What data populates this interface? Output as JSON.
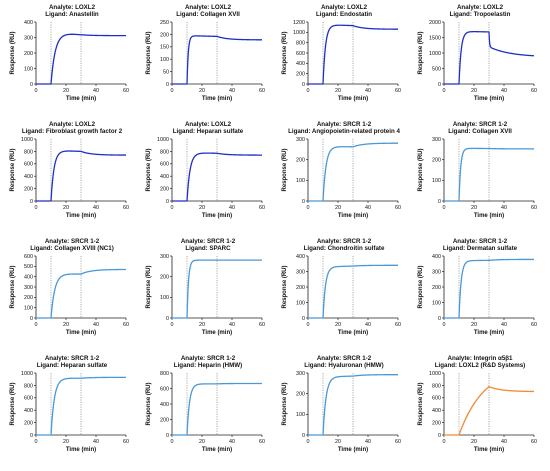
{
  "colors": {
    "dark_blue": "#1f2ec9",
    "light_blue": "#4a98d6",
    "orange": "#f28a2e",
    "axis": "#222222",
    "dotted": "#777777"
  },
  "chart_data": [
    {
      "type": "line",
      "title": "Analyte: LOXL2",
      "subtitle": "Ligand: Anastellin",
      "xlabel": "Time (min)",
      "ylabel": "Response (RU)",
      "xlim": [
        0,
        60
      ],
      "xticks": [
        0,
        20,
        40,
        60
      ],
      "ylim": [
        0,
        400
      ],
      "yticks": [
        0,
        100,
        200,
        300,
        400
      ],
      "color": "dark_blue",
      "injection_start": 10,
      "injection_end": 30,
      "curve": {
        "kind": "assoc",
        "ymax": 335,
        "k": 0.35,
        "y_end": 318,
        "y_final": 312
      }
    },
    {
      "type": "line",
      "title": "Analyte: LOXL2",
      "subtitle": "Ligand: Collagen XVII",
      "xlabel": "Time (min)",
      "ylabel": "Response (RU)",
      "xlim": [
        0,
        60
      ],
      "xticks": [
        0,
        20,
        40,
        60
      ],
      "ylim": [
        0,
        250
      ],
      "yticks": [
        0,
        50,
        100,
        150,
        200,
        250
      ],
      "color": "dark_blue",
      "injection_start": 10,
      "injection_end": 30,
      "curve": {
        "kind": "assoc",
        "ymax": 195,
        "k": 1.2,
        "y_end": 192,
        "y_final": 178
      }
    },
    {
      "type": "line",
      "title": "Analyte: LOXL2",
      "subtitle": "Ligand: Endostatin",
      "xlabel": "Time (min)",
      "ylabel": "Response (RU)",
      "xlim": [
        0,
        60
      ],
      "xticks": [
        0,
        20,
        40,
        60
      ],
      "ylim": [
        0,
        1200
      ],
      "yticks": [
        0,
        200,
        400,
        600,
        800,
        1000,
        1200
      ],
      "color": "dark_blue",
      "injection_start": 10,
      "injection_end": 30,
      "curve": {
        "kind": "assoc",
        "ymax": 1150,
        "k": 0.6,
        "y_end": 1130,
        "y_final": 1060
      }
    },
    {
      "type": "line",
      "title": "Analyte: LOXL2",
      "subtitle": "Ligand: Tropoelastin",
      "xlabel": "Time (min)",
      "ylabel": "Response (RU)",
      "xlim": [
        0,
        60
      ],
      "xticks": [
        0,
        20,
        40,
        60
      ],
      "ylim": [
        0,
        2000
      ],
      "yticks": [
        0,
        500,
        1000,
        1500,
        2000
      ],
      "color": "dark_blue",
      "injection_start": 10,
      "injection_end": 30,
      "curve": {
        "kind": "assoc_drop",
        "ymax": 1700,
        "k": 0.7,
        "y_end": 1680,
        "y_drop": 1200,
        "y_final": 870
      }
    },
    {
      "type": "line",
      "title": "Analyte: LOXL2",
      "subtitle": "Ligand: Fibroblast growth factor 2",
      "xlabel": "Time (min)",
      "ylabel": "Response (RU)",
      "xlim": [
        0,
        60
      ],
      "xticks": [
        0,
        20,
        40,
        60
      ],
      "ylim": [
        0,
        1000
      ],
      "yticks": [
        0,
        200,
        400,
        600,
        800,
        1000
      ],
      "color": "dark_blue",
      "injection_start": 10,
      "injection_end": 30,
      "curve": {
        "kind": "assoc",
        "ymax": 820,
        "k": 0.5,
        "y_end": 800,
        "y_final": 740
      }
    },
    {
      "type": "line",
      "title": "Analyte: LOXL2",
      "subtitle": "Ligand: Heparan sulfate",
      "xlabel": "Time (min)",
      "ylabel": "Response (RU)",
      "xlim": [
        0,
        60
      ],
      "xticks": [
        0,
        20,
        40,
        60
      ],
      "ylim": [
        0,
        1000
      ],
      "yticks": [
        0,
        200,
        400,
        600,
        800,
        1000
      ],
      "color": "dark_blue",
      "injection_start": 10,
      "injection_end": 30,
      "curve": {
        "kind": "assoc",
        "ymax": 780,
        "k": 0.5,
        "y_end": 770,
        "y_final": 740
      }
    },
    {
      "type": "line",
      "title": "Analyte: SRCR 1-2",
      "subtitle": "Ligand: Angiopoietin-related protein 4",
      "xlabel": "Time (min)",
      "ylabel": "Response (RU)",
      "xlim": [
        0,
        60
      ],
      "xticks": [
        0,
        20,
        40,
        60
      ],
      "ylim": [
        0,
        300
      ],
      "yticks": [
        0,
        100,
        200,
        300
      ],
      "color": "light_blue",
      "injection_start": 10,
      "injection_end": 30,
      "curve": {
        "kind": "assoc",
        "ymax": 265,
        "k": 0.5,
        "y_end": 262,
        "y_final": 280
      }
    },
    {
      "type": "line",
      "title": "Analyte: SRCR 1-2",
      "subtitle": "Ligand: Collagen XVII",
      "xlabel": "Time (min)",
      "ylabel": "Response (RU)",
      "xlim": [
        0,
        60
      ],
      "xticks": [
        0,
        20,
        40,
        60
      ],
      "ylim": [
        0,
        300
      ],
      "yticks": [
        0,
        100,
        200,
        300
      ],
      "color": "light_blue",
      "injection_start": 10,
      "injection_end": 30,
      "curve": {
        "kind": "assoc",
        "ymax": 255,
        "k": 0.9,
        "y_end": 254,
        "y_final": 252
      }
    },
    {
      "type": "line",
      "title": "Analyte: SRCR 1-2",
      "subtitle": "Ligand: Collagen XVIII (NC1)",
      "xlabel": "Time (min)",
      "ylabel": "Response (RU)",
      "xlim": [
        0,
        60
      ],
      "xticks": [
        0,
        20,
        40,
        60
      ],
      "ylim": [
        0,
        600
      ],
      "yticks": [
        0,
        100,
        200,
        300,
        400,
        500,
        600
      ],
      "color": "light_blue",
      "injection_start": 10,
      "injection_end": 30,
      "curve": {
        "kind": "assoc",
        "ymax": 430,
        "k": 0.4,
        "y_end": 425,
        "y_final": 470
      }
    },
    {
      "type": "line",
      "title": "Analyte: SRCR 1-2",
      "subtitle": "Ligand: SPARC",
      "xlabel": "Time (min)",
      "ylabel": "Response (RU)",
      "xlim": [
        0,
        60
      ],
      "xticks": [
        0,
        20,
        40,
        60
      ],
      "ylim": [
        0,
        300
      ],
      "yticks": [
        0,
        100,
        200,
        300
      ],
      "color": "light_blue",
      "injection_start": 10,
      "injection_end": 30,
      "curve": {
        "kind": "assoc",
        "ymax": 280,
        "k": 1.0,
        "y_end": 280,
        "y_final": 280
      }
    },
    {
      "type": "line",
      "title": "Analyte: SRCR 1-2",
      "subtitle": "Ligand: Chondroitin sulfate",
      "xlabel": "Time (min)",
      "ylabel": "Response (RU)",
      "xlim": [
        0,
        60
      ],
      "xticks": [
        0,
        20,
        40,
        60
      ],
      "ylim": [
        0,
        400
      ],
      "yticks": [
        0,
        100,
        200,
        300,
        400
      ],
      "color": "light_blue",
      "injection_start": 10,
      "injection_end": 30,
      "curve": {
        "kind": "assoc",
        "ymax": 330,
        "k": 0.6,
        "y_end": 335,
        "y_final": 340
      }
    },
    {
      "type": "line",
      "title": "Analyte: SRCR 1-2",
      "subtitle": "Ligand: Dermatan sulfate",
      "xlabel": "Time (min)",
      "ylabel": "Response (RU)",
      "xlim": [
        0,
        60
      ],
      "xticks": [
        0,
        20,
        40,
        60
      ],
      "ylim": [
        0,
        400
      ],
      "yticks": [
        0,
        100,
        200,
        300,
        400
      ],
      "color": "light_blue",
      "injection_start": 10,
      "injection_end": 30,
      "curve": {
        "kind": "assoc",
        "ymax": 370,
        "k": 0.7,
        "y_end": 372,
        "y_final": 378
      }
    },
    {
      "type": "line",
      "title": "Analyte: SRCR 1-2",
      "subtitle": "Ligand: Heparan sulfate",
      "xlabel": "Time (min)",
      "ylabel": "Response (RU)",
      "xlim": [
        0,
        60
      ],
      "xticks": [
        0,
        20,
        40,
        60
      ],
      "ylim": [
        0,
        1000
      ],
      "yticks": [
        0,
        200,
        400,
        600,
        800,
        1000
      ],
      "color": "light_blue",
      "injection_start": 10,
      "injection_end": 30,
      "curve": {
        "kind": "assoc",
        "ymax": 920,
        "k": 0.45,
        "y_end": 915,
        "y_final": 930
      }
    },
    {
      "type": "line",
      "title": "Analyte: SRCR 1-2",
      "subtitle": "Ligand: Heparin (HMW)",
      "xlabel": "Time (min)",
      "ylabel": "Response (RU)",
      "xlim": [
        0,
        60
      ],
      "xticks": [
        0,
        20,
        40,
        60
      ],
      "ylim": [
        0,
        800
      ],
      "yticks": [
        0,
        200,
        400,
        600,
        800
      ],
      "color": "light_blue",
      "injection_start": 10,
      "injection_end": 30,
      "curve": {
        "kind": "assoc",
        "ymax": 660,
        "k": 0.6,
        "y_end": 660,
        "y_final": 665
      }
    },
    {
      "type": "line",
      "title": "Analyte: SRCR 1-2",
      "subtitle": "Ligand: Hyaluronan (HMW)",
      "xlabel": "Time (min)",
      "ylabel": "Response (RU)",
      "xlim": [
        0,
        60
      ],
      "xticks": [
        0,
        20,
        40,
        60
      ],
      "ylim": [
        0,
        300
      ],
      "yticks": [
        0,
        100,
        200,
        300
      ],
      "color": "light_blue",
      "injection_start": 10,
      "injection_end": 30,
      "curve": {
        "kind": "assoc",
        "ymax": 282,
        "k": 0.5,
        "y_end": 285,
        "y_final": 292
      }
    },
    {
      "type": "line",
      "title": "Analyte: Integrin α5β1",
      "subtitle": "Ligand: LOXL2 (R&D Systems)",
      "xlabel": "Time (min)",
      "ylabel": "Response (RU)",
      "xlim": [
        0,
        60
      ],
      "xticks": [
        0,
        20,
        40,
        60
      ],
      "ylim": [
        0,
        1000
      ],
      "yticks": [
        0,
        200,
        400,
        600,
        800,
        1000
      ],
      "color": "orange",
      "injection_start": 10,
      "injection_end": 30,
      "curve": {
        "kind": "slow",
        "ymax": 1000,
        "k": 0.06,
        "y_end": 780,
        "y_final": 700
      }
    }
  ]
}
